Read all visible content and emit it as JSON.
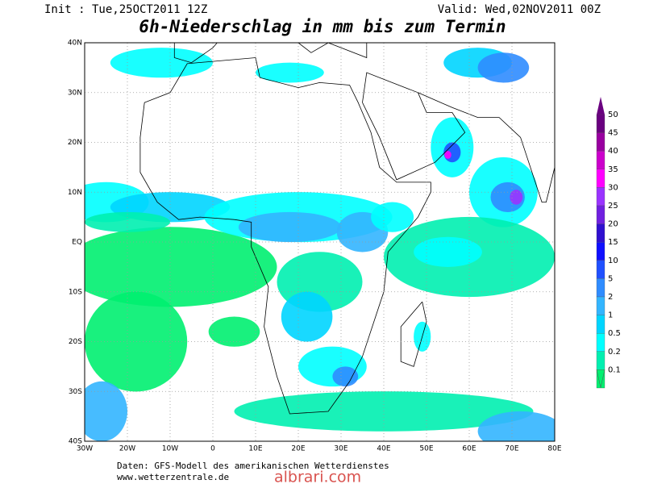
{
  "header": {
    "init": "Init : Tue,25OCT2011 12Z",
    "valid": "Valid: Wed,02NOV2011 00Z",
    "title": "6h-Niederschlag in mm bis zum Termin"
  },
  "map": {
    "lon_labels": [
      "30W",
      "20W",
      "10W",
      "0",
      "10E",
      "20E",
      "30E",
      "40E",
      "50E",
      "60E",
      "70E",
      "80E"
    ],
    "lat_labels": [
      "40N",
      "30N",
      "20N",
      "10N",
      "EQ",
      "10S",
      "20S",
      "30S",
      "40S"
    ]
  },
  "legend": [
    {
      "label": "50",
      "color": "#6a0080"
    },
    {
      "label": "45",
      "color": "#9900a0"
    },
    {
      "label": "40",
      "color": "#cc00cc"
    },
    {
      "label": "35",
      "color": "#ff00ff"
    },
    {
      "label": "30",
      "color": "#9a33ff"
    },
    {
      "label": "25",
      "color": "#7020e0"
    },
    {
      "label": "20",
      "color": "#3010d0"
    },
    {
      "label": "15",
      "color": "#1010ff"
    },
    {
      "label": "10",
      "color": "#2050ff"
    },
    {
      "label": "5",
      "color": "#2f8cff"
    },
    {
      "label": "2",
      "color": "#33b5ff"
    },
    {
      "label": "1",
      "color": "#00d5ff"
    },
    {
      "label": "0.5",
      "color": "#00ffff"
    },
    {
      "label": "0.2",
      "color": "#00efb0"
    },
    {
      "label": "0.1",
      "color": "#00f070"
    }
  ],
  "footer": {
    "source": "Daten: GFS-Modell des amerikanischen Wetterdienstes",
    "website": "www.wetterzentrale.de",
    "watermark": "albrari.com"
  }
}
